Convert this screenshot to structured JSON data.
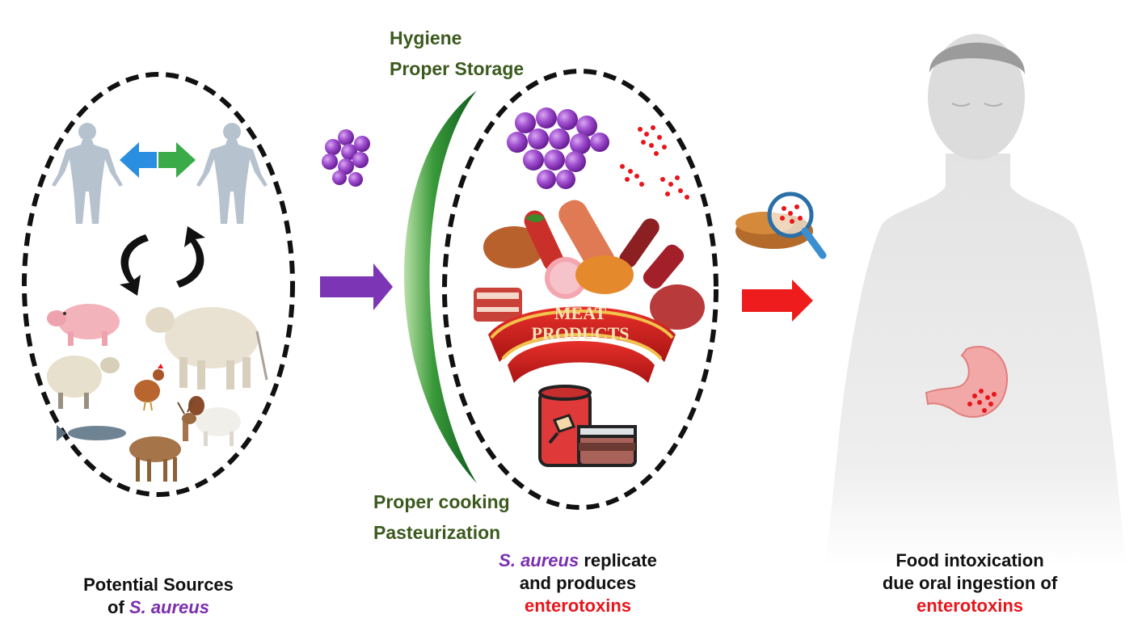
{
  "prevention_top": {
    "line1": "Hygiene",
    "line2": "Proper Storage"
  },
  "prevention_bottom": {
    "line1": "Proper cooking",
    "line2": "Pasteurization"
  },
  "meat_banner": {
    "line1": "MEAT",
    "line2": "PRODUCTS"
  },
  "captions": {
    "sources": {
      "line1": "Potential Sources",
      "prefix": "of ",
      "organism": "S. aureus"
    },
    "replication": {
      "organism": "S. aureus",
      "line1_rest": " replicate",
      "line2": "and produces",
      "line3": "enterotoxins"
    },
    "intoxication": {
      "line1": "Food intoxication",
      "line2": "due oral ingestion of",
      "line3": "enterotoxins"
    }
  },
  "colors": {
    "dashed_ellipse": "#111111",
    "staph_purple": "#9b3fc9",
    "arrow_purple": "#7b35b5",
    "arrow_red": "#ee1c1c",
    "label_green": "#3c5a1e",
    "toxin_red": "#e8151b",
    "arrow_blue": "#2a8fe0",
    "arrow_green": "#3bab49"
  },
  "icons": [
    "human-figure-icon",
    "exchange-arrows-icon",
    "cycle-arrows-icon",
    "pig-icon",
    "cow-icon",
    "sheep-icon",
    "chicken-icon",
    "fish-icon",
    "deer-icon",
    "goat-icon",
    "staph-cluster-icon",
    "meat-products-icon",
    "canned-food-icon",
    "magnifier-icon",
    "stomach-icon",
    "human-torso-icon"
  ]
}
